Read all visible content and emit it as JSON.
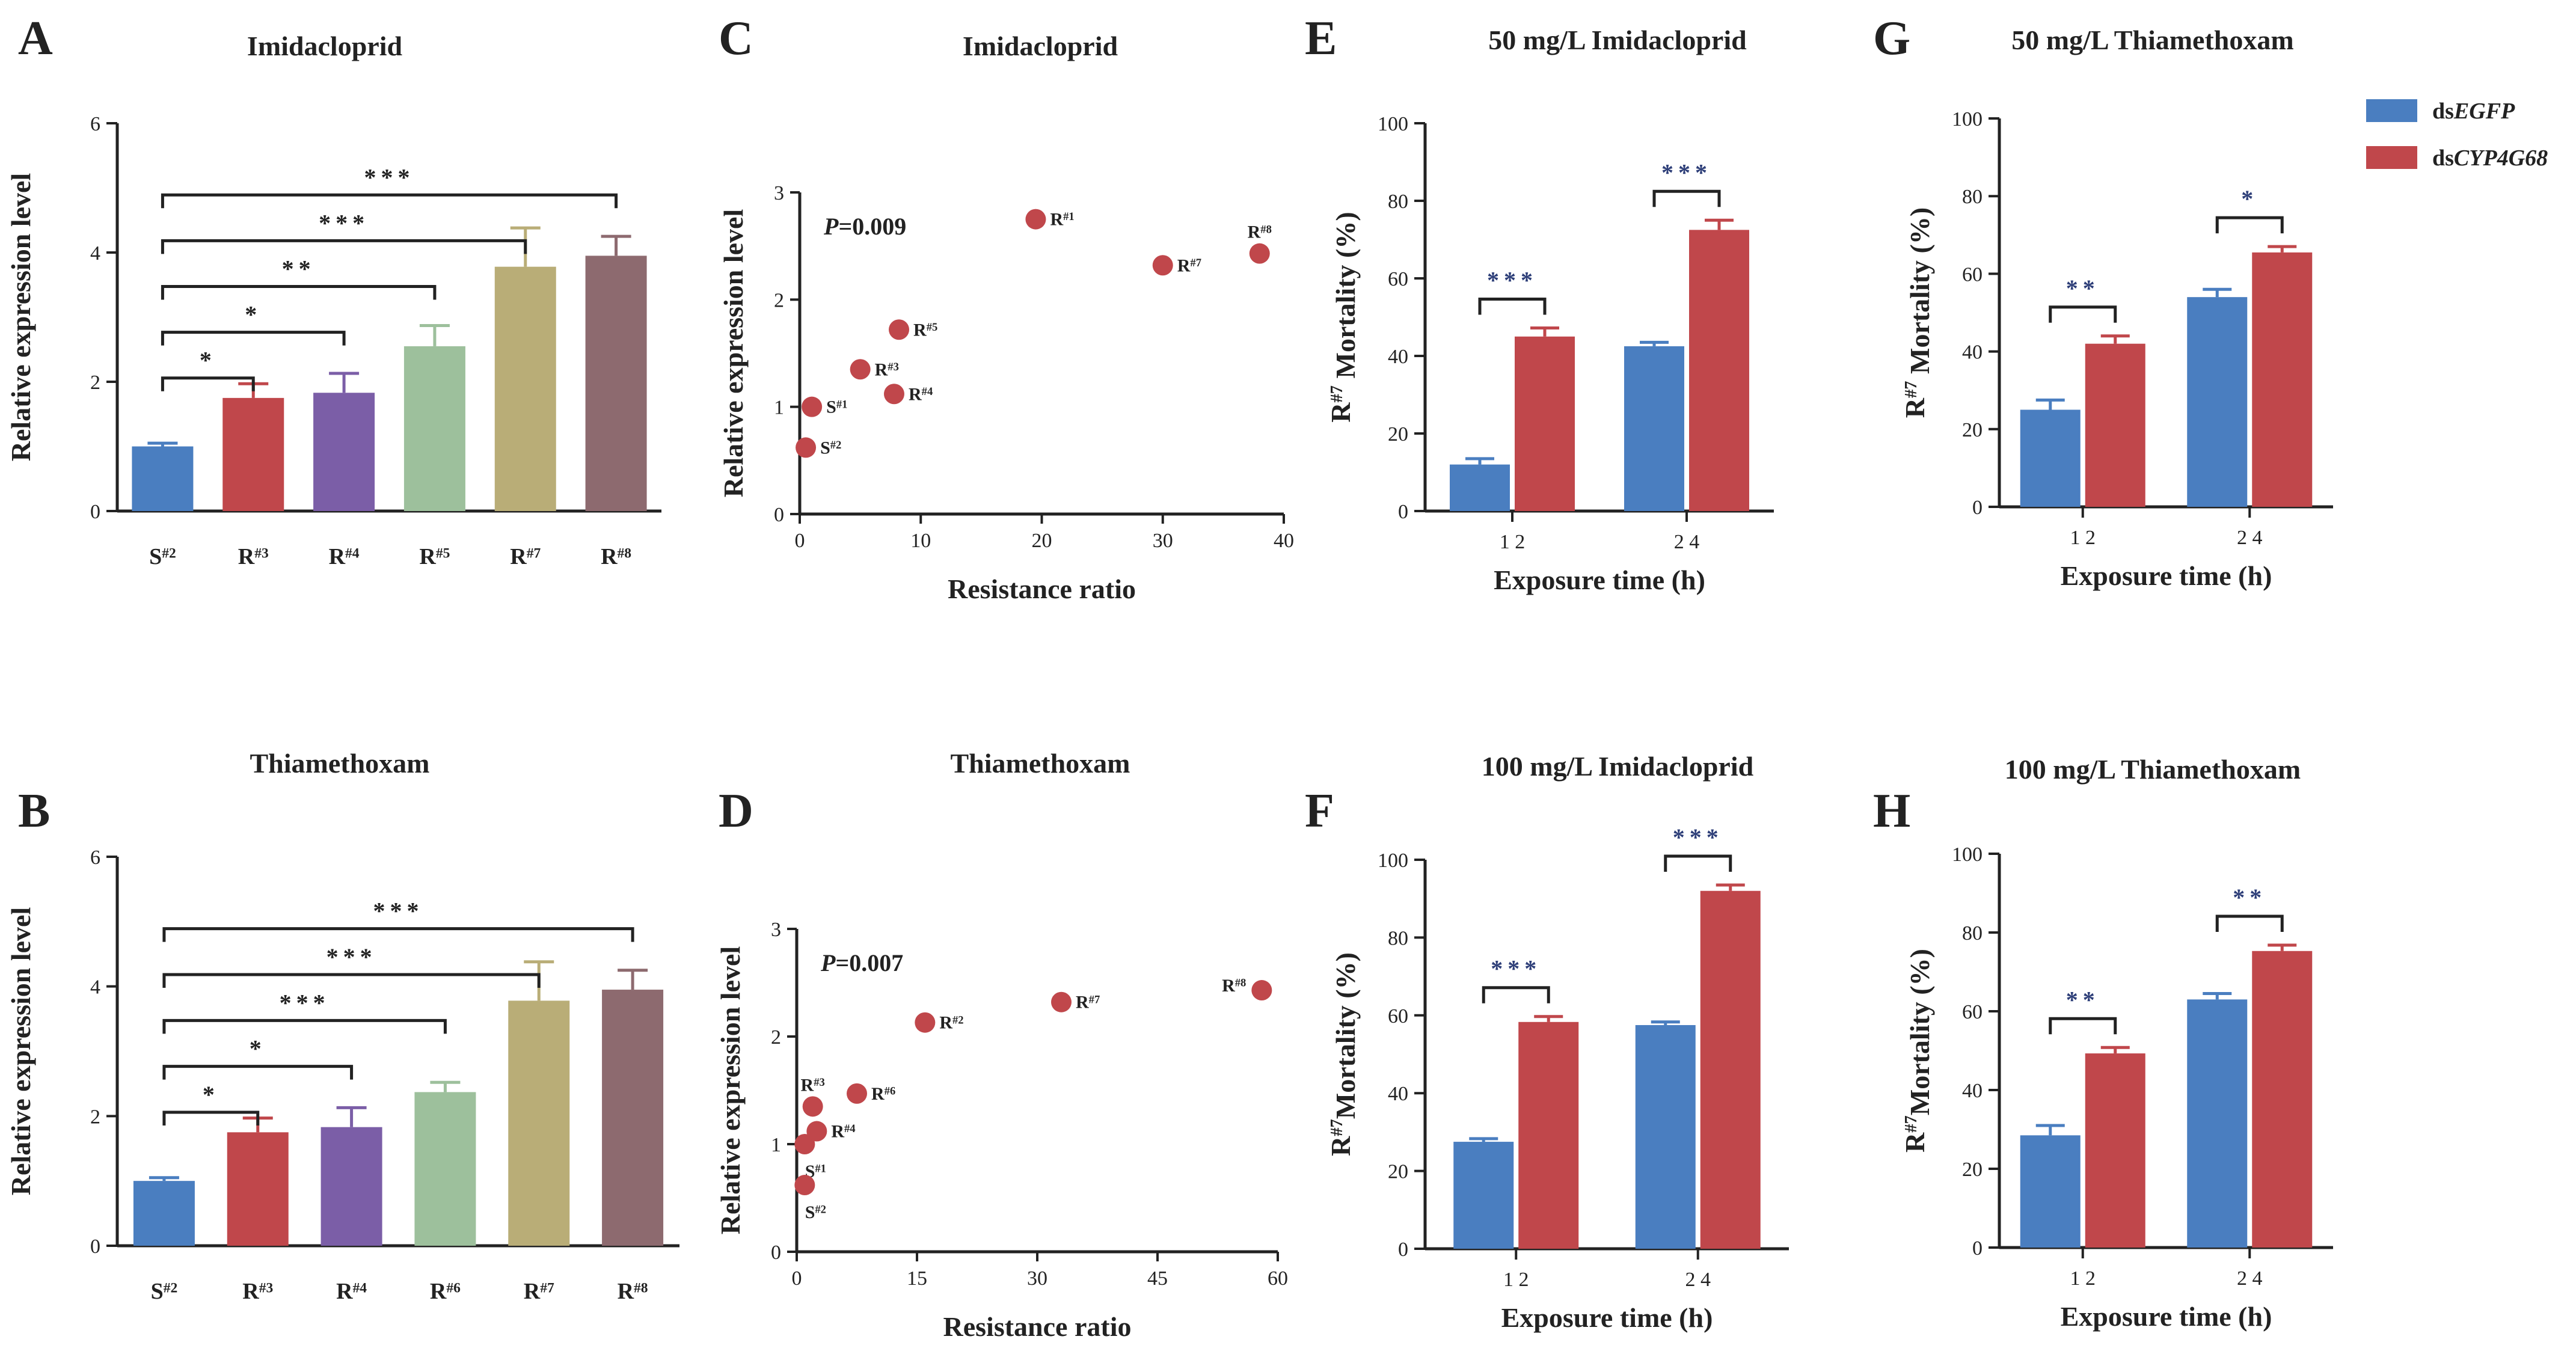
{
  "chart_data": [
    {
      "id": "A",
      "panel": "A",
      "type": "bar",
      "title": "Imidacloprid",
      "ylabel": "Relative expression level",
      "xlabel": "",
      "ylim": [
        0,
        6
      ],
      "yticks": [
        0,
        2,
        4,
        6
      ],
      "categories": [
        {
          "base": "S",
          "sup": "#2"
        },
        {
          "base": "R",
          "sup": "#3"
        },
        {
          "base": "R",
          "sup": "#4"
        },
        {
          "base": "R",
          "sup": "#5"
        },
        {
          "base": "R",
          "sup": "#7"
        },
        {
          "base": "R",
          "sup": "#8"
        }
      ],
      "values": [
        1.0,
        1.75,
        1.83,
        2.55,
        3.78,
        3.95
      ],
      "errors": [
        0.05,
        0.22,
        0.3,
        0.32,
        0.6,
        0.3
      ],
      "colors": [
        "#4a7ec0",
        "#c0474b",
        "#7b5ea7",
        "#9dc09c",
        "#b9ad77",
        "#8d6a6f"
      ],
      "comparisons": [
        {
          "from": 0,
          "to": 1,
          "label": "*"
        },
        {
          "from": 0,
          "to": 2,
          "label": "*"
        },
        {
          "from": 0,
          "to": 3,
          "label": "**"
        },
        {
          "from": 0,
          "to": 4,
          "label": "***"
        },
        {
          "from": 0,
          "to": 5,
          "label": "***"
        }
      ]
    },
    {
      "id": "B",
      "panel": "B",
      "type": "bar",
      "title": "Thiamethoxam",
      "ylabel": "Relative expression level",
      "xlabel": "",
      "ylim": [
        0,
        6
      ],
      "yticks": [
        0,
        2,
        4,
        6
      ],
      "categories": [
        {
          "base": "S",
          "sup": "#2"
        },
        {
          "base": "R",
          "sup": "#3"
        },
        {
          "base": "R",
          "sup": "#4"
        },
        {
          "base": "R",
          "sup": "#6"
        },
        {
          "base": "R",
          "sup": "#7"
        },
        {
          "base": "R",
          "sup": "#8"
        }
      ],
      "values": [
        1.0,
        1.75,
        1.83,
        2.37,
        3.78,
        3.95
      ],
      "errors": [
        0.05,
        0.22,
        0.3,
        0.15,
        0.6,
        0.3
      ],
      "colors": [
        "#4a7ec0",
        "#c0474b",
        "#7b5ea7",
        "#9dc09c",
        "#b9ad77",
        "#8d6a6f"
      ],
      "comparisons": [
        {
          "from": 0,
          "to": 1,
          "label": "*"
        },
        {
          "from": 0,
          "to": 2,
          "label": "*"
        },
        {
          "from": 0,
          "to": 3,
          "label": "***"
        },
        {
          "from": 0,
          "to": 4,
          "label": "***"
        },
        {
          "from": 0,
          "to": 5,
          "label": "***"
        }
      ]
    },
    {
      "id": "C",
      "panel": "C",
      "type": "scatter",
      "title": "Imidacloprid",
      "xlabel": "Resistance ratio",
      "ylabel": "Relative expression level",
      "xlim": [
        0,
        40
      ],
      "ylim": [
        0,
        3
      ],
      "xticks": [
        0,
        10,
        20,
        30,
        40
      ],
      "yticks": [
        0,
        1,
        2,
        3
      ],
      "p_value": "=0.009",
      "p_label": "P",
      "color": "#c0474b",
      "points": [
        {
          "x": 1.0,
          "y": 1.0,
          "base": "S",
          "sup": "#1",
          "pos": "right"
        },
        {
          "x": 0.5,
          "y": 0.62,
          "base": "S",
          "sup": "#2",
          "pos": "right"
        },
        {
          "x": 5.0,
          "y": 1.35,
          "base": "R",
          "sup": "#3",
          "pos": "right"
        },
        {
          "x": 7.8,
          "y": 1.12,
          "base": "R",
          "sup": "#4",
          "pos": "right"
        },
        {
          "x": 8.2,
          "y": 1.72,
          "base": "R",
          "sup": "#5",
          "pos": "right"
        },
        {
          "x": 19.5,
          "y": 2.75,
          "base": "R",
          "sup": "#1",
          "pos": "right"
        },
        {
          "x": 30.0,
          "y": 2.32,
          "base": "R",
          "sup": "#7",
          "pos": "right"
        },
        {
          "x": 38.0,
          "y": 2.43,
          "base": "R",
          "sup": "#8",
          "pos": "above"
        }
      ]
    },
    {
      "id": "D",
      "panel": "D",
      "type": "scatter",
      "title": "Thiamethoxam",
      "xlabel": "Resistance ratio",
      "ylabel": "Relative expression level",
      "xlim": [
        0,
        60
      ],
      "ylim": [
        0,
        3
      ],
      "xticks": [
        0,
        15,
        30,
        45,
        60
      ],
      "yticks": [
        0,
        1,
        2,
        3
      ],
      "p_value": "=0.007",
      "p_label": "P",
      "color": "#c0474b",
      "points": [
        {
          "x": 1.0,
          "y": 1.0,
          "base": "S",
          "sup": "#1",
          "pos": "below"
        },
        {
          "x": 1.0,
          "y": 0.62,
          "base": "S",
          "sup": "#2",
          "pos": "below"
        },
        {
          "x": 2.0,
          "y": 1.35,
          "base": "R",
          "sup": "#3",
          "pos": "above"
        },
        {
          "x": 2.5,
          "y": 1.12,
          "base": "R",
          "sup": "#4",
          "pos": "right"
        },
        {
          "x": 7.5,
          "y": 1.47,
          "base": "R",
          "sup": "#6",
          "pos": "right"
        },
        {
          "x": 16.0,
          "y": 2.13,
          "base": "R",
          "sup": "#2",
          "pos": "right"
        },
        {
          "x": 33.0,
          "y": 2.32,
          "base": "R",
          "sup": "#7",
          "pos": "right"
        },
        {
          "x": 58.0,
          "y": 2.43,
          "base": "R",
          "sup": "#8",
          "pos": "left"
        }
      ]
    },
    {
      "id": "E",
      "panel": "E",
      "type": "bar",
      "title": "50 mg/L Imidacloprid",
      "xlabel": "Exposure time (h)",
      "ylabel_parts": [
        {
          "base": "R",
          "sup": "#7"
        },
        {
          "text": " Mortality (%)"
        }
      ],
      "ylim": [
        0,
        100
      ],
      "yticks": [
        0,
        20,
        40,
        60,
        80,
        100
      ],
      "categories": [
        "1 2",
        "2 4"
      ],
      "series": [
        {
          "name": "dsEGFP",
          "color": "#4a7ec0",
          "values": [
            12,
            42.5
          ],
          "errors": [
            1.5,
            1.0
          ]
        },
        {
          "name": "dsCYP4G68",
          "color": "#c0474b",
          "values": [
            45,
            72.5
          ],
          "errors": [
            2.2,
            2.5
          ]
        }
      ],
      "significance": [
        "***",
        "***"
      ],
      "star_color": "#2d3e78"
    },
    {
      "id": "F",
      "panel": "F",
      "type": "bar",
      "title": "100 mg/L Imidacloprid",
      "xlabel": "Exposure time (h)",
      "ylabel_parts": [
        {
          "base": "R",
          "sup": "#7"
        },
        {
          "text": "Mortality (%)"
        }
      ],
      "ylim": [
        0,
        100
      ],
      "yticks": [
        0,
        20,
        40,
        60,
        80,
        100
      ],
      "categories": [
        "1 2",
        "2 4"
      ],
      "series": [
        {
          "name": "dsEGFP",
          "color": "#4a7ec0",
          "values": [
            27.5,
            57.5
          ],
          "errors": [
            0.8,
            0.8
          ]
        },
        {
          "name": "dsCYP4G68",
          "color": "#c0474b",
          "values": [
            58.3,
            92
          ],
          "errors": [
            1.4,
            1.5
          ]
        }
      ],
      "significance": [
        "***",
        "***"
      ],
      "star_color": "#2d3e78"
    },
    {
      "id": "G",
      "panel": "G",
      "type": "bar",
      "title": "50 mg/L Thiamethoxam",
      "xlabel": "Exposure time (h)",
      "ylabel_parts": [
        {
          "base": "R",
          "sup": "#7"
        },
        {
          "text": " Mortality (%)"
        }
      ],
      "ylim": [
        0,
        100
      ],
      "yticks": [
        0,
        20,
        40,
        60,
        80,
        100
      ],
      "categories": [
        "1 2",
        "2 4"
      ],
      "series": [
        {
          "name": "dsEGFP",
          "color": "#4a7ec0",
          "values": [
            25,
            54
          ],
          "errors": [
            2.5,
            2.0
          ]
        },
        {
          "name": "dsCYP4G68",
          "color": "#c0474b",
          "values": [
            42,
            65.5
          ],
          "errors": [
            2.0,
            1.5
          ]
        }
      ],
      "significance": [
        "**",
        "*"
      ],
      "star_color": "#2d3e78",
      "legend": {
        "placement": "top-right",
        "entries": [
          {
            "prefix": "ds",
            "italic": "EGFP",
            "color": "#4a7ec0"
          },
          {
            "prefix": "ds",
            "italic": "CYP4G68",
            "color": "#c0474b"
          }
        ]
      }
    },
    {
      "id": "H",
      "panel": "H",
      "type": "bar",
      "title": "100 mg/L Thiamethoxam",
      "xlabel": "Exposure time (h)",
      "ylabel_parts": [
        {
          "base": "R",
          "sup": "#7"
        },
        {
          "text": "Mortality (%)"
        }
      ],
      "ylim": [
        0,
        100
      ],
      "yticks": [
        0,
        20,
        40,
        60,
        80,
        100
      ],
      "categories": [
        "1 2",
        "2 4"
      ],
      "series": [
        {
          "name": "dsEGFP",
          "color": "#4a7ec0",
          "values": [
            28.5,
            63
          ],
          "errors": [
            2.5,
            1.5
          ]
        },
        {
          "name": "dsCYP4G68",
          "color": "#c0474b",
          "values": [
            49.3,
            75.3
          ],
          "errors": [
            1.5,
            1.5
          ]
        }
      ],
      "significance": [
        "**",
        "**"
      ],
      "star_color": "#2d3e78"
    }
  ]
}
